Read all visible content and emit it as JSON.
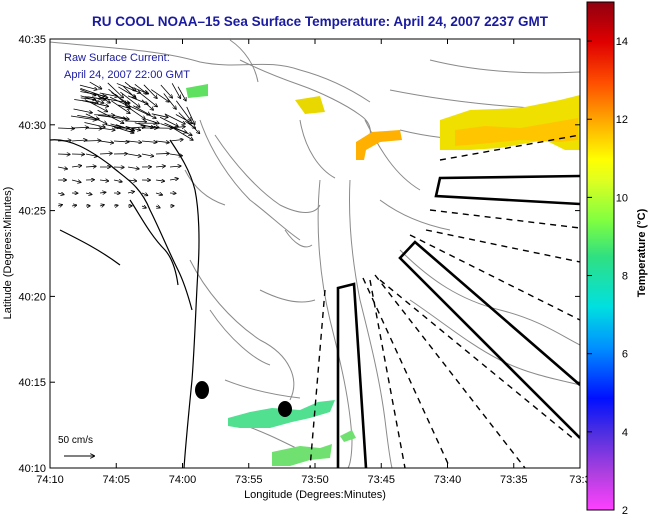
{
  "title": "RU COOL  NOAA–15  Sea Surface Temperature:  April 24, 2007 2237 GMT",
  "legend": {
    "line1": "Raw Surface Current:",
    "line2": "April 24, 2007 22:00 GMT"
  },
  "scale_label": "50 cm/s",
  "axes": {
    "xlabel": "Longitude (Degrees:Minutes)",
    "ylabel": "Latitude (Degrees:Minutes)",
    "x_ticks": [
      "74:10",
      "74:05",
      "74:00",
      "73:55",
      "73:50",
      "73:45",
      "73:40",
      "73:35",
      "73:3"
    ],
    "y_ticks": [
      "40:35",
      "40:30",
      "40:25",
      "40:20",
      "40:15",
      "40:10"
    ]
  },
  "colorbar": {
    "label": "Temperature (°C)",
    "ticks": [
      "14",
      "12",
      "10",
      "8",
      "6",
      "4",
      "2"
    ],
    "tick_values": [
      14,
      12,
      10,
      8,
      6,
      4,
      2
    ],
    "range": [
      2,
      15
    ]
  },
  "colors": {
    "title": "#1a1aa0",
    "legend_text": "#1a1aa0"
  }
}
